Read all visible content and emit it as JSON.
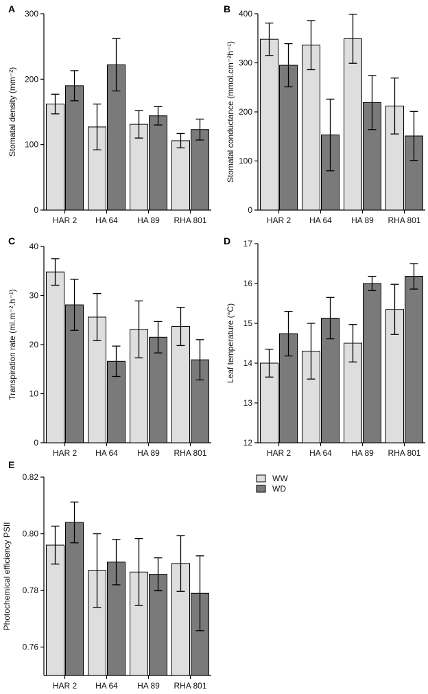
{
  "colors": {
    "ww": "#dedede",
    "wd": "#7a7a7a",
    "axis": "#000000"
  },
  "legend": {
    "ww": "WW",
    "wd": "WD"
  },
  "chart_data": [
    {
      "id": "A",
      "panel": "A",
      "type": "bar",
      "ylabel": "Stomatal density  (mm⁻²)",
      "categories": [
        "HAR 2",
        "HA 64",
        "HA 89",
        "RHA 801"
      ],
      "ylim": [
        0,
        300
      ],
      "yticks": [
        0,
        100,
        200,
        300
      ],
      "series": [
        {
          "name": "WW",
          "values": [
            162,
            127,
            131,
            106
          ],
          "errors": [
            15,
            35,
            21,
            11
          ]
        },
        {
          "name": "WD",
          "values": [
            190,
            222,
            144,
            123
          ],
          "errors": [
            23,
            40,
            14,
            16
          ]
        }
      ]
    },
    {
      "id": "B",
      "panel": "B",
      "type": "bar",
      "ylabel": "Stomatal conductance (mmol.cm⁻²h⁻¹)",
      "categories": [
        "HAR 2",
        "HA 64",
        "HA 89",
        "RHA 801"
      ],
      "ylim": [
        0,
        400
      ],
      "yticks": [
        0,
        100,
        200,
        300,
        400
      ],
      "series": [
        {
          "name": "WW",
          "values": [
            348,
            336,
            349,
            212
          ],
          "errors": [
            33,
            50,
            50,
            57
          ]
        },
        {
          "name": "WD",
          "values": [
            295,
            153,
            219,
            151
          ],
          "errors": [
            44,
            73,
            55,
            50
          ]
        }
      ]
    },
    {
      "id": "C",
      "panel": "C",
      "type": "bar",
      "ylabel": "Transpiration rate (ml.m⁻².h⁻¹)",
      "categories": [
        "HAR 2",
        "HA 64",
        "HA 89",
        "RHA 801"
      ],
      "ylim": [
        0,
        40
      ],
      "yticks": [
        0,
        10,
        20,
        30,
        40
      ],
      "series": [
        {
          "name": "WW",
          "values": [
            34.8,
            25.6,
            23.1,
            23.7
          ],
          "errors": [
            2.7,
            4.8,
            5.8,
            3.9
          ]
        },
        {
          "name": "WD",
          "values": [
            28.1,
            16.6,
            21.5,
            16.9
          ],
          "errors": [
            5.2,
            3.1,
            3.2,
            4.1
          ]
        }
      ]
    },
    {
      "id": "D",
      "panel": "D",
      "type": "bar",
      "ylabel": "Leaf temperature (°C)",
      "categories": [
        "HAR 2",
        "HA 64",
        "HA 89",
        "RHA 801"
      ],
      "ylim": [
        12,
        17
      ],
      "yticks": [
        12,
        13,
        14,
        15,
        16,
        17
      ],
      "series": [
        {
          "name": "WW",
          "values": [
            14.0,
            14.3,
            14.5,
            15.35
          ],
          "errors": [
            0.35,
            0.7,
            0.47,
            0.63
          ]
        },
        {
          "name": "WD",
          "values": [
            14.74,
            15.13,
            16.0,
            16.18
          ],
          "errors": [
            0.56,
            0.52,
            0.18,
            0.32
          ]
        }
      ]
    },
    {
      "id": "E",
      "panel": "E",
      "type": "bar",
      "ylabel": "Photochemical efficiency PSII",
      "categories": [
        "HAR 2",
        "HA 64",
        "HA 89",
        "RHA 801"
      ],
      "ylim": [
        0.75,
        0.82
      ],
      "yticks": [
        0.76,
        0.78,
        0.8,
        0.82
      ],
      "ytick_labels": [
        "0.76",
        "0.78",
        "0.80",
        "0.82"
      ],
      "series": [
        {
          "name": "WW",
          "values": [
            0.796,
            0.787,
            0.7865,
            0.7895
          ],
          "errors": [
            0.0067,
            0.013,
            0.0118,
            0.0098
          ]
        },
        {
          "name": "WD",
          "values": [
            0.804,
            0.79,
            0.7857,
            0.779
          ],
          "errors": [
            0.0072,
            0.008,
            0.0058,
            0.0132
          ]
        }
      ]
    }
  ]
}
